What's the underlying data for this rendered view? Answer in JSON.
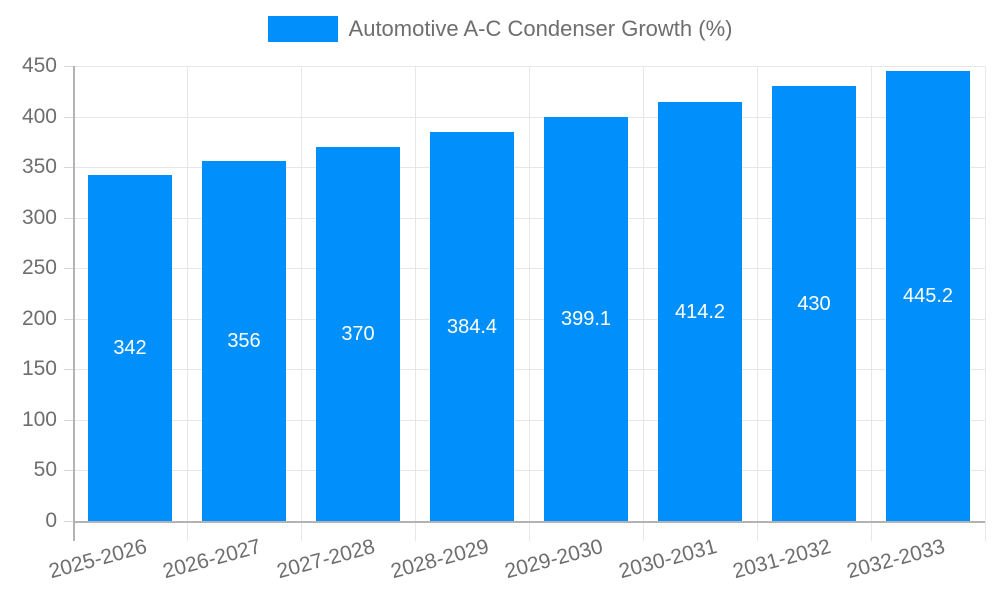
{
  "chart_data": {
    "type": "bar",
    "title": "",
    "legend": {
      "label": "Automotive A-C Condenser Growth (%)",
      "position": "top"
    },
    "categories": [
      "2025-2026",
      "2026-2027",
      "2027-2028",
      "2028-2029",
      "2029-2030",
      "2030-2031",
      "2031-2032",
      "2032-2033"
    ],
    "series": [
      {
        "name": "Automotive A-C Condenser Growth (%)",
        "values": [
          342,
          356,
          370,
          384.4,
          399.1,
          414.2,
          430,
          445.2
        ],
        "labels": [
          "342",
          "356",
          "370",
          "384.4",
          "399.1",
          "414.2",
          "430",
          "445.2"
        ]
      }
    ],
    "xlabel": "",
    "ylabel": "",
    "ylim": [
      0,
      450
    ],
    "ytick_step": 50,
    "grid": true,
    "colors": {
      "bar": "#008FFB",
      "axis_label": "#6e6e6e",
      "value_label": "#ffffff",
      "gridline": "#e7e7e7",
      "axis_line": "#b3b3b3",
      "tick": "#d6d6d6"
    }
  }
}
